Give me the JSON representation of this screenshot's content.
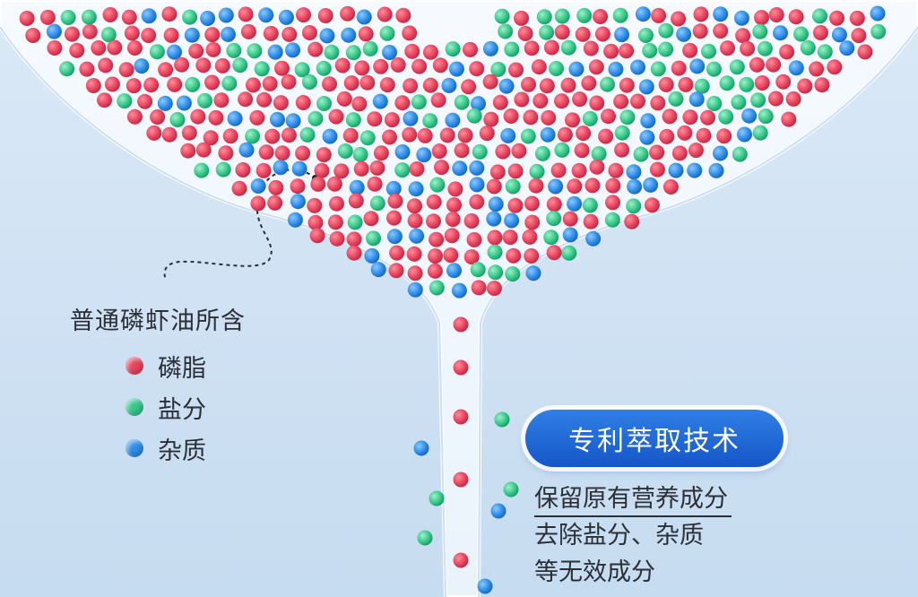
{
  "legend": {
    "title": "普通磷虾油所含",
    "items": [
      {
        "label": "磷脂",
        "color": "#e8455f"
      },
      {
        "label": "盐分",
        "color": "#37c98b"
      },
      {
        "label": "杂质",
        "color": "#2f8ee8"
      }
    ]
  },
  "badge": {
    "label": "专利萃取技术"
  },
  "description": {
    "line1": "保留原有营养成分",
    "line2": "去除盐分、杂质",
    "line3": "等无效成分"
  }
}
